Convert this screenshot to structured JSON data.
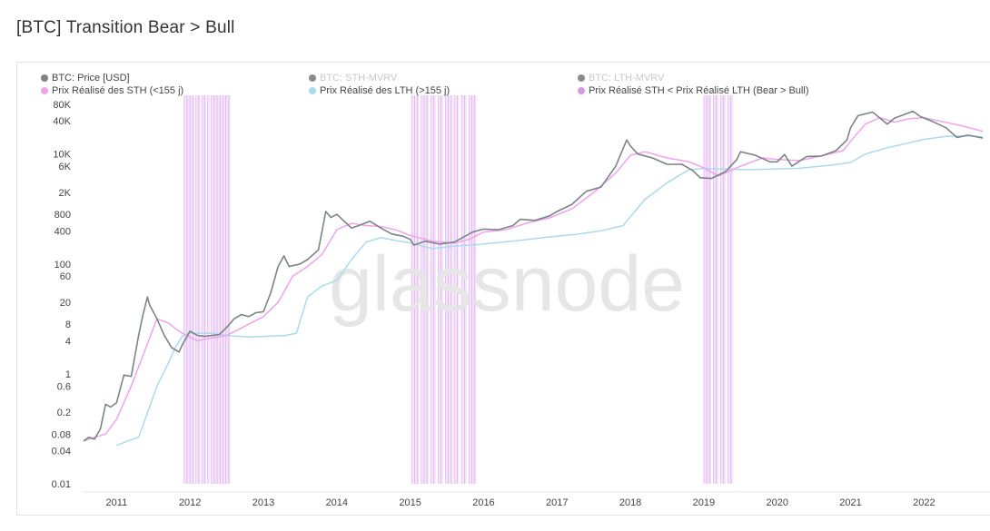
{
  "header": {
    "title": "[BTC] Transition Bear > Bull"
  },
  "watermark": "glassnode",
  "legend": [
    {
      "label": "BTC: Price [USD]",
      "color": "#7b8486",
      "faded": false
    },
    {
      "label": "BTC: STH-MVRV",
      "color": "#8a8a8a",
      "faded": true
    },
    {
      "label": "BTC: LTH-MVRV",
      "color": "#8a8a8a",
      "faded": true
    },
    {
      "label": "Prix Réalisé des STH (<155 j)",
      "color": "#f2a1ef",
      "faded": false
    },
    {
      "label": "Prix Réalisé des LTH (>155 j)",
      "color": "#a9dbee",
      "faded": false
    },
    {
      "label": "Prix Réalisé STH < Prix Réalisé LTH (Bear > Bull)",
      "color": "#d69be8",
      "faded": false
    }
  ],
  "chart_data": {
    "type": "line",
    "title": "[BTC] Transition Bear > Bull",
    "y_scale": "log",
    "ylim": [
      0.01,
      80000
    ],
    "xlim": [
      2010.55,
      2022.8
    ],
    "y_ticks": [
      {
        "v": 0.01,
        "label": "0.01"
      },
      {
        "v": 0.04,
        "label": "0.04"
      },
      {
        "v": 0.08,
        "label": "0.08"
      },
      {
        "v": 0.2,
        "label": "0.2"
      },
      {
        "v": 0.6,
        "label": "0.6"
      },
      {
        "v": 1,
        "label": "1"
      },
      {
        "v": 4,
        "label": "4"
      },
      {
        "v": 8,
        "label": "8"
      },
      {
        "v": 20,
        "label": "20"
      },
      {
        "v": 60,
        "label": "60"
      },
      {
        "v": 100,
        "label": "100"
      },
      {
        "v": 400,
        "label": "400"
      },
      {
        "v": 800,
        "label": "800"
      },
      {
        "v": 2000,
        "label": "2K"
      },
      {
        "v": 6000,
        "label": "6K"
      },
      {
        "v": 10000,
        "label": "10K"
      },
      {
        "v": 40000,
        "label": "40K"
      },
      {
        "v": 80000,
        "label": "80K"
      }
    ],
    "x_ticks": [
      "2011",
      "2012",
      "2013",
      "2014",
      "2015",
      "2016",
      "2017",
      "2018",
      "2019",
      "2020",
      "2021",
      "2022"
    ],
    "series": [
      {
        "name": "BTC: Price [USD]",
        "color": "#7b8486",
        "x": [
          2010.55,
          2010.62,
          2010.7,
          2010.78,
          2010.85,
          2010.92,
          2011.0,
          2011.1,
          2011.2,
          2011.3,
          2011.36,
          2011.42,
          2011.45,
          2011.55,
          2011.65,
          2011.75,
          2011.85,
          2011.9,
          2011.95,
          2012.0,
          2012.1,
          2012.2,
          2012.3,
          2012.4,
          2012.5,
          2012.6,
          2012.7,
          2012.8,
          2012.9,
          2013.0,
          2013.1,
          2013.2,
          2013.28,
          2013.35,
          2013.5,
          2013.6,
          2013.75,
          2013.85,
          2013.92,
          2014.0,
          2014.1,
          2014.2,
          2014.3,
          2014.45,
          2014.6,
          2014.75,
          2014.9,
          2015.0,
          2015.05,
          2015.2,
          2015.4,
          2015.6,
          2015.75,
          2015.85,
          2016.0,
          2016.2,
          2016.4,
          2016.5,
          2016.7,
          2016.9,
          2017.0,
          2017.2,
          2017.4,
          2017.6,
          2017.8,
          2017.95,
          2018.0,
          2018.1,
          2018.3,
          2018.5,
          2018.7,
          2018.85,
          2018.95,
          2019.1,
          2019.3,
          2019.45,
          2019.5,
          2019.7,
          2019.9,
          2020.0,
          2020.1,
          2020.2,
          2020.4,
          2020.6,
          2020.8,
          2020.95,
          2021.0,
          2021.1,
          2021.3,
          2021.5,
          2021.6,
          2021.85,
          2021.95,
          2022.1,
          2022.3,
          2022.45,
          2022.6,
          2022.8
        ],
        "values": [
          0.06,
          0.07,
          0.065,
          0.1,
          0.28,
          0.25,
          0.3,
          0.95,
          0.9,
          5,
          12,
          25,
          18,
          10,
          5,
          3,
          2.5,
          3.5,
          4.5,
          6,
          5,
          4.8,
          5,
          5.2,
          7,
          10,
          12,
          11,
          13,
          13.5,
          30,
          90,
          140,
          90,
          100,
          120,
          180,
          900,
          700,
          800,
          600,
          450,
          500,
          600,
          450,
          350,
          320,
          280,
          220,
          260,
          230,
          250,
          320,
          380,
          430,
          420,
          500,
          650,
          620,
          750,
          900,
          1200,
          2100,
          2500,
          6000,
          18000,
          14000,
          10000,
          8500,
          6500,
          6500,
          5000,
          3700,
          3600,
          4800,
          8000,
          11000,
          9500,
          7200,
          7200,
          9800,
          6000,
          9000,
          9200,
          11500,
          18000,
          30000,
          50000,
          58000,
          35000,
          45000,
          60000,
          48000,
          40000,
          30000,
          20000,
          22000,
          19500
        ]
      },
      {
        "name": "Prix Réalisé des STH (<155 j)",
        "color": "#f2a1ef",
        "x": [
          2010.55,
          2010.7,
          2010.85,
          2011.0,
          2011.2,
          2011.4,
          2011.55,
          2011.7,
          2011.85,
          2011.95,
          2012.1,
          2012.3,
          2012.5,
          2012.8,
          2013.0,
          2013.2,
          2013.4,
          2013.6,
          2013.8,
          2014.0,
          2014.2,
          2014.4,
          2014.6,
          2014.8,
          2015.0,
          2015.3,
          2015.6,
          2015.8,
          2016.0,
          2016.3,
          2016.6,
          2016.9,
          2017.2,
          2017.5,
          2017.8,
          2018.0,
          2018.2,
          2018.5,
          2018.8,
          2019.0,
          2019.2,
          2019.5,
          2019.8,
          2020.0,
          2020.3,
          2020.6,
          2020.9,
          2021.0,
          2021.2,
          2021.4,
          2021.6,
          2021.8,
          2022.0,
          2022.2,
          2022.5,
          2022.8
        ],
        "values": [
          0.06,
          0.07,
          0.08,
          0.15,
          0.6,
          3,
          10,
          8.5,
          6,
          5,
          4,
          4.5,
          5,
          8,
          11,
          20,
          60,
          90,
          150,
          420,
          550,
          500,
          480,
          420,
          330,
          260,
          240,
          280,
          380,
          420,
          560,
          690,
          1000,
          2000,
          4500,
          9500,
          11000,
          8500,
          7200,
          5600,
          4000,
          6000,
          8500,
          8000,
          7600,
          9200,
          11500,
          17000,
          35000,
          46000,
          38000,
          44000,
          46000,
          40000,
          33000,
          26000
        ]
      },
      {
        "name": "Prix Réalisé des LTH (>155 j)",
        "color": "#a9dbee",
        "x": [
          2011.0,
          2011.15,
          2011.3,
          2011.45,
          2011.55,
          2011.7,
          2011.8,
          2011.9,
          2012.0,
          2012.1,
          2012.3,
          2012.5,
          2012.8,
          2013.0,
          2013.3,
          2013.45,
          2013.6,
          2013.8,
          2014.0,
          2014.2,
          2014.4,
          2014.6,
          2015.0,
          2015.3,
          2015.6,
          2016.0,
          2016.5,
          2016.9,
          2017.3,
          2017.6,
          2017.9,
          2018.2,
          2018.5,
          2018.8,
          2019.0,
          2019.3,
          2019.6,
          2019.9,
          2020.3,
          2020.7,
          2021.0,
          2021.2,
          2021.5,
          2021.8,
          2022.0,
          2022.3,
          2022.6,
          2022.8
        ],
        "values": [
          0.05,
          0.06,
          0.07,
          0.25,
          0.6,
          1.5,
          3,
          5,
          5.5,
          5.5,
          5.5,
          5,
          4.7,
          4.8,
          5,
          5.5,
          25,
          40,
          50,
          120,
          250,
          300,
          240,
          190,
          210,
          230,
          270,
          310,
          350,
          400,
          500,
          1500,
          3000,
          5200,
          5500,
          5300,
          5200,
          5300,
          5500,
          6200,
          7000,
          10000,
          13000,
          16000,
          18500,
          21000,
          21500,
          20500
        ]
      }
    ],
    "bands": [
      [
        2011.92,
        2012.06
      ],
      [
        2012.08,
        2012.14
      ],
      [
        2012.16,
        2012.22
      ],
      [
        2012.24,
        2012.27
      ],
      [
        2012.29,
        2012.55
      ],
      [
        2015.02,
        2015.12
      ],
      [
        2015.15,
        2015.25
      ],
      [
        2015.28,
        2015.35
      ],
      [
        2015.38,
        2015.45
      ],
      [
        2015.48,
        2015.58
      ],
      [
        2015.6,
        2015.66
      ],
      [
        2015.7,
        2015.77
      ],
      [
        2015.8,
        2015.9
      ],
      [
        2019.0,
        2019.1
      ],
      [
        2019.13,
        2019.2
      ],
      [
        2019.23,
        2019.3
      ],
      [
        2019.33,
        2019.4
      ]
    ],
    "band_color": "#d69be8"
  }
}
